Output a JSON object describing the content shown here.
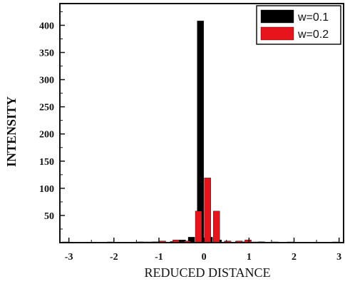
{
  "chart_data": {
    "type": "bar",
    "title": "",
    "xlabel": "REDUCED DISTANCE",
    "ylabel": "INTENSITY",
    "xlim": [
      -3.2,
      3.1
    ],
    "ylim": [
      0,
      440
    ],
    "xticks": [
      "-3",
      "-2",
      "-1",
      "0",
      "1",
      "2",
      "3"
    ],
    "xtick_values": [
      -3,
      -2,
      -1,
      0,
      1,
      2,
      3
    ],
    "yticks": [
      "50",
      "100",
      "150",
      "200",
      "250",
      "300",
      "350",
      "400"
    ],
    "ytick_values": [
      50,
      100,
      150,
      200,
      250,
      300,
      350,
      400
    ],
    "grid": false,
    "legend_position": "top-right",
    "series": [
      {
        "name": "w=0.1",
        "color": "#000000",
        "points": [
          {
            "x": -3.0,
            "y": 0.5
          },
          {
            "x": -2.0,
            "y": 0.5
          },
          {
            "x": -1.3,
            "y": 0.5
          },
          {
            "x": -1.15,
            "y": 1
          },
          {
            "x": -1.0,
            "y": 1.5
          },
          {
            "x": -0.85,
            "y": 2
          },
          {
            "x": -0.6,
            "y": 2
          },
          {
            "x": -0.4,
            "y": 5
          },
          {
            "x": -0.2,
            "y": 10
          },
          {
            "x": 0.0,
            "y": 408
          },
          {
            "x": 0.2,
            "y": 10
          },
          {
            "x": 0.4,
            "y": 5
          },
          {
            "x": 0.6,
            "y": 2
          },
          {
            "x": 0.85,
            "y": 2
          },
          {
            "x": 1.0,
            "y": 1.5
          },
          {
            "x": 1.15,
            "y": 1
          },
          {
            "x": 1.3,
            "y": 0.5
          },
          {
            "x": 2.0,
            "y": 0.5
          },
          {
            "x": 3.0,
            "y": 0.5
          }
        ]
      },
      {
        "name": "w=0.2",
        "color": "#e8141c",
        "points": [
          {
            "x": -1.5,
            "y": 1
          },
          {
            "x": -1.0,
            "y": 3
          },
          {
            "x": -0.7,
            "y": 5
          },
          {
            "x": -0.45,
            "y": 3
          },
          {
            "x": -0.2,
            "y": 58
          },
          {
            "x": 0.0,
            "y": 119
          },
          {
            "x": 0.2,
            "y": 58
          },
          {
            "x": 0.45,
            "y": 3
          },
          {
            "x": 0.7,
            "y": 3
          },
          {
            "x": 0.9,
            "y": 5
          },
          {
            "x": 1.2,
            "y": 1.5
          },
          {
            "x": 1.5,
            "y": 1
          }
        ]
      }
    ]
  }
}
